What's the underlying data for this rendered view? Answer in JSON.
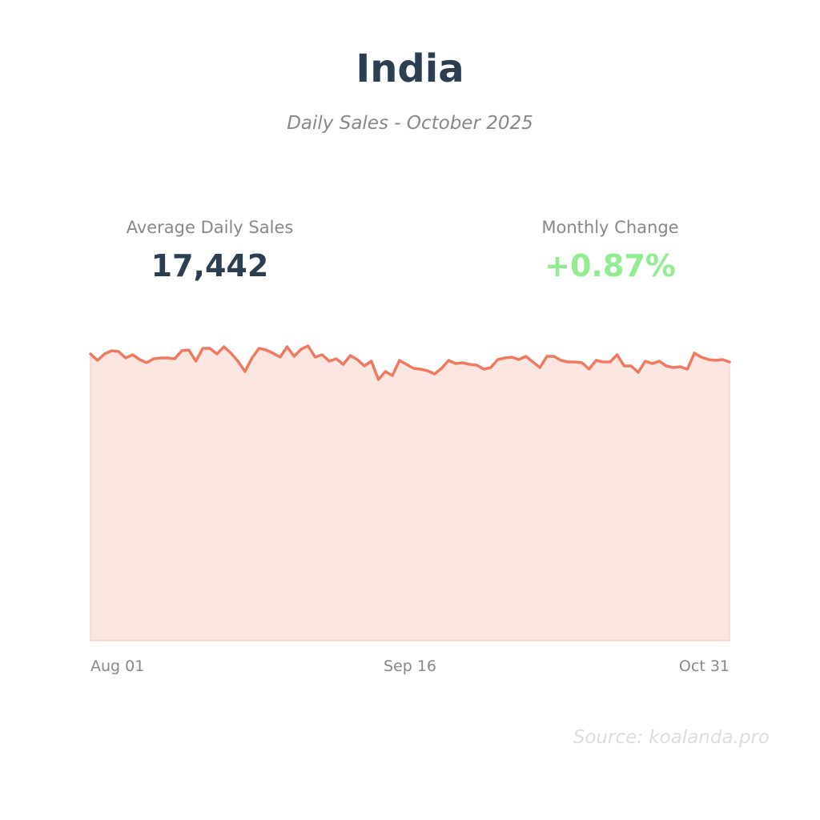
{
  "header": {
    "title": "India",
    "subtitle": "Daily Sales - October 2025"
  },
  "stats": {
    "average_label": "Average Daily Sales",
    "average_value": "17,442",
    "change_label": "Monthly Change",
    "change_value": "+0.87%"
  },
  "source": "Source: koalanda.pro",
  "colors": {
    "line": "#f07a60",
    "fill": "#fce6e2",
    "positive_change": "#90ee90",
    "title": "#2c3e50"
  },
  "chart_data": {
    "type": "area",
    "title": "India",
    "subtitle": "Daily Sales - October 2025",
    "x_tick_labels": [
      "Aug 01",
      "Sep 16",
      "Oct 31"
    ],
    "x_range": [
      "Aug 01",
      "Oct 31"
    ],
    "ylim": [
      0,
      20000
    ],
    "grid": false,
    "legend": "none",
    "series": [
      {
        "values": [
          17900,
          17500,
          17900,
          18100,
          18050,
          17650,
          17850,
          17550,
          17350,
          17600,
          17650,
          17650,
          17600,
          18100,
          18150,
          17450,
          18250,
          18250,
          17900,
          18350,
          17950,
          17450,
          16800,
          17650,
          18250,
          18150,
          17950,
          17700,
          18350,
          17750,
          18200,
          18400,
          17700,
          17850,
          17450,
          17600,
          17250,
          17800,
          17550,
          17150,
          17450,
          16300,
          16800,
          16550,
          17500,
          17250,
          17000,
          16950,
          16850,
          16650,
          17000,
          17500,
          17300,
          17350,
          17250,
          17200,
          16950,
          17050,
          17550,
          17650,
          17700,
          17550,
          17750,
          17400,
          17050,
          17750,
          17750,
          17500,
          17400,
          17400,
          17350,
          16950,
          17500,
          17400,
          17400,
          17850,
          17150,
          17150,
          16750,
          17450,
          17300,
          17450,
          17150,
          17050,
          17100,
          16950,
          17950,
          17700,
          17550,
          17500,
          17550,
          17400
        ]
      }
    ]
  }
}
